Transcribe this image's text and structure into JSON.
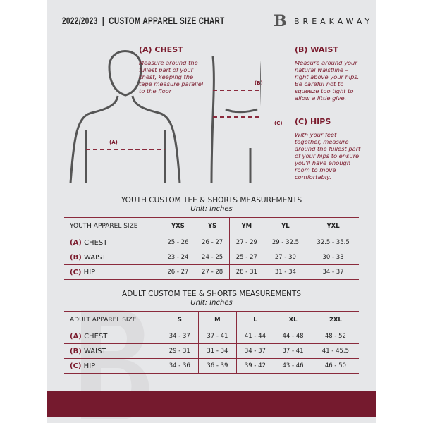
{
  "header": {
    "title": "2022/2023  |  CUSTOM APPAREL SIZE CHART",
    "brand": "BREAKAWAY",
    "logo_letter": "B"
  },
  "guide": {
    "chest": {
      "heading": "(A) CHEST",
      "text": "Measure around the fullest part of your chest, keeping the tape measure parallel to the floor",
      "marker": "(A)"
    },
    "waist": {
      "heading": "(B) WAIST",
      "text": "Measure around your natural waistline – right above your hips. Be careful not to squeeze too tight to allow a little give.",
      "marker": "(B)"
    },
    "hips": {
      "heading": "(C) HIPS",
      "text": "With your feet together, measure around the fullest part of your hips to ensure you'll have enough room to move comfortably.",
      "marker": "(C)"
    }
  },
  "youth": {
    "title": "YOUTH CUSTOM TEE & SHORTS MEASUREMENTS",
    "unit": "Unit: Inches",
    "label": "YOUTH APPAREL SIZE",
    "sizes": [
      "YXS",
      "YS",
      "YM",
      "YL",
      "YXL"
    ],
    "rows": [
      {
        "key": "(A)",
        "name": "CHEST",
        "values": [
          "25 - 26",
          "26 - 27",
          "27 - 29",
          "29 - 32.5",
          "32.5 - 35.5"
        ]
      },
      {
        "key": "(B)",
        "name": "WAIST",
        "values": [
          "23 - 24",
          "24 - 25",
          "25 - 27",
          "27 - 30",
          "30 - 33"
        ]
      },
      {
        "key": "(C)",
        "name": "HIP",
        "values": [
          "26 - 27",
          "27 - 28",
          "28 - 31",
          "31 - 34",
          "34 - 37"
        ]
      }
    ]
  },
  "adult": {
    "title": "ADULT CUSTOM TEE & SHORTS MEASUREMENTS",
    "unit": "Unit: Inches",
    "label": "ADULT APPAREL SIZE",
    "sizes": [
      "S",
      "M",
      "L",
      "XL",
      "2XL"
    ],
    "rows": [
      {
        "key": "(A)",
        "name": "CHEST",
        "values": [
          "34 - 37",
          "37 - 41",
          "41 - 44",
          "44 - 48",
          "48 - 52"
        ]
      },
      {
        "key": "(B)",
        "name": "WAIST",
        "values": [
          "29 - 31",
          "31 - 34",
          "34 - 37",
          "37 - 41",
          "41 - 45.5"
        ]
      },
      {
        "key": "(C)",
        "name": "HIP",
        "values": [
          "34 - 36",
          "36 - 39",
          "39 - 42",
          "43 - 46",
          "46 - 50"
        ]
      }
    ]
  },
  "colors": {
    "accent": "#751a2e",
    "panel": "#e6e7e9"
  }
}
